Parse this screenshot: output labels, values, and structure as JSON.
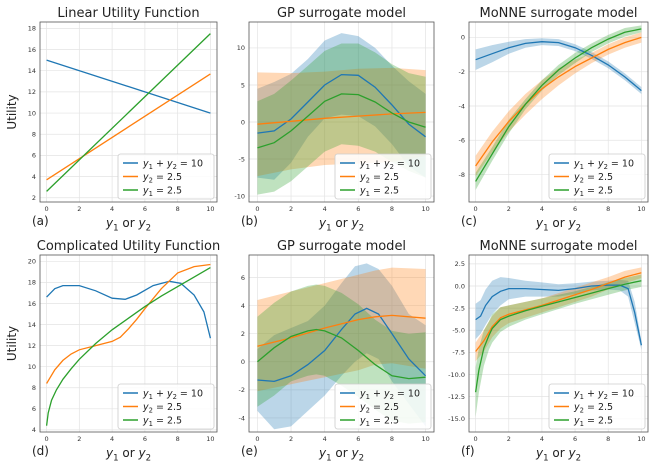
{
  "chart_data": [
    {
      "id": "a",
      "type": "line",
      "title": "Linear Utility Function",
      "panel_label": "(a)",
      "xlabel": "y1 or y2",
      "ylabel": "Utility",
      "xlim": [
        -0.4,
        10.4
      ],
      "ylim": [
        1.6,
        18.6
      ],
      "xticks": [
        0,
        2,
        4,
        6,
        8,
        10
      ],
      "yticks": [
        2,
        4,
        6,
        8,
        10,
        12,
        14,
        16,
        18
      ],
      "grid": true,
      "legend_position": "lower-right",
      "series": [
        {
          "name": "y1 + y2 = 10",
          "color": "#1f77b4",
          "x": [
            0,
            10
          ],
          "y": [
            15.0,
            10.0
          ]
        },
        {
          "name": "y2 = 2.5",
          "color": "#ff7f0e",
          "x": [
            0,
            10
          ],
          "y": [
            3.7,
            13.7
          ]
        },
        {
          "name": "y1 = 2.5",
          "color": "#2ca02c",
          "x": [
            0,
            10
          ],
          "y": [
            2.6,
            17.5
          ]
        }
      ]
    },
    {
      "id": "b",
      "type": "line",
      "title": "GP surrogate model",
      "panel_label": "(b)",
      "xlabel": "y1 or y2",
      "ylabel": "",
      "xlim": [
        -0.5,
        10.5
      ],
      "ylim": [
        -10.8,
        13.5
      ],
      "xticks": [
        0,
        2,
        4,
        6,
        8,
        10
      ],
      "yticks": [
        -10,
        -5,
        0,
        5,
        10
      ],
      "grid": true,
      "legend_position": "lower-right",
      "series": [
        {
          "name": "y1 + y2 = 10",
          "color": "#1f77b4",
          "x": [
            0,
            1,
            2,
            3,
            4,
            5,
            6,
            7,
            8,
            9,
            10
          ],
          "y": [
            -1.5,
            -1.2,
            0.4,
            2.7,
            5.0,
            6.4,
            6.3,
            4.7,
            2.3,
            -0.3,
            -2.0
          ],
          "lower": [
            -7.5,
            -7.8,
            -5.5,
            -2.0,
            0.5,
            1.0,
            0.8,
            -0.6,
            -3.0,
            -6.0,
            -7.5
          ],
          "upper": [
            4.5,
            5.4,
            6.5,
            8.5,
            11.0,
            12.0,
            11.6,
            10.0,
            7.6,
            5.5,
            3.8
          ]
        },
        {
          "name": "y2 = 2.5",
          "color": "#ff7f0e",
          "x": [
            0,
            2,
            4,
            6,
            8,
            10
          ],
          "y": [
            -0.3,
            0.1,
            0.5,
            0.8,
            1.1,
            1.3
          ],
          "lower": [
            -7.3,
            -6.4,
            -5.8,
            -5.6,
            -5.4,
            -4.6
          ],
          "upper": [
            6.7,
            6.6,
            6.8,
            7.2,
            7.3,
            7.0
          ]
        },
        {
          "name": "y1 = 2.5",
          "color": "#2ca02c",
          "x": [
            0,
            1,
            2,
            3,
            4,
            5,
            6,
            7,
            8,
            9,
            10
          ],
          "y": [
            -3.5,
            -2.8,
            -1.2,
            0.8,
            2.8,
            3.8,
            3.7,
            2.7,
            1.2,
            0.0,
            -0.7
          ],
          "lower": [
            -9.8,
            -9.4,
            -8.0,
            -6.0,
            -4.0,
            -3.0,
            -3.2,
            -4.0,
            -5.4,
            -6.6,
            -7.5
          ],
          "upper": [
            2.8,
            3.8,
            5.6,
            7.6,
            9.6,
            10.6,
            10.6,
            9.4,
            7.8,
            6.6,
            6.1
          ]
        }
      ]
    },
    {
      "id": "c",
      "type": "line",
      "title": "MoNNE surrogate model",
      "panel_label": "(c)",
      "xlabel": "y1 or y2",
      "ylabel": "",
      "xlim": [
        -0.4,
        10.4
      ],
      "ylim": [
        -9.6,
        0.9
      ],
      "xticks": [
        0,
        2,
        4,
        6,
        8,
        10
      ],
      "yticks": [
        -8,
        -6,
        -4,
        -2,
        0
      ],
      "grid": true,
      "legend_position": "lower-right",
      "series": [
        {
          "name": "y1 + y2 = 10",
          "color": "#1f77b4",
          "x": [
            0,
            1,
            2,
            3,
            4,
            5,
            6,
            7,
            8,
            9,
            10
          ],
          "y": [
            -1.3,
            -0.95,
            -0.6,
            -0.35,
            -0.25,
            -0.3,
            -0.6,
            -1.05,
            -1.6,
            -2.3,
            -3.1
          ],
          "lower": [
            -1.9,
            -1.45,
            -0.95,
            -0.6,
            -0.45,
            -0.5,
            -0.8,
            -1.25,
            -1.8,
            -2.5,
            -3.3
          ],
          "upper": [
            -0.7,
            -0.45,
            -0.25,
            -0.1,
            -0.05,
            -0.1,
            -0.4,
            -0.85,
            -1.4,
            -2.1,
            -2.9
          ]
        },
        {
          "name": "y2 = 2.5",
          "color": "#ff7f0e",
          "x": [
            0,
            1,
            2,
            3,
            4,
            5,
            6,
            7,
            8,
            9,
            10
          ],
          "y": [
            -7.5,
            -6.1,
            -4.9,
            -3.9,
            -3.0,
            -2.3,
            -1.7,
            -1.2,
            -0.7,
            -0.3,
            0.0
          ],
          "lower": [
            -8.1,
            -6.7,
            -5.5,
            -4.5,
            -3.6,
            -2.8,
            -2.1,
            -1.5,
            -1.0,
            -0.6,
            -0.3
          ],
          "upper": [
            -6.9,
            -5.5,
            -4.3,
            -3.3,
            -2.5,
            -1.8,
            -1.3,
            -0.9,
            -0.4,
            0.0,
            0.3
          ]
        },
        {
          "name": "y1 = 2.5",
          "color": "#2ca02c",
          "x": [
            0,
            1,
            2,
            3,
            4,
            5,
            6,
            7,
            8,
            9,
            10
          ],
          "y": [
            -8.4,
            -6.8,
            -5.2,
            -3.9,
            -2.8,
            -1.9,
            -1.2,
            -0.6,
            -0.1,
            0.3,
            0.5
          ],
          "lower": [
            -8.9,
            -7.2,
            -5.6,
            -4.2,
            -3.1,
            -2.2,
            -1.5,
            -0.85,
            -0.35,
            0.05,
            0.3
          ],
          "upper": [
            -7.9,
            -6.4,
            -4.8,
            -3.6,
            -2.5,
            -1.6,
            -0.9,
            -0.35,
            0.15,
            0.55,
            0.7
          ]
        }
      ]
    },
    {
      "id": "d",
      "type": "line",
      "title": "Complicated Utility Function",
      "panel_label": "(d)",
      "xlabel": "y1 or y2",
      "ylabel": "Utility",
      "xlim": [
        -0.4,
        10.4
      ],
      "ylim": [
        3.8,
        20.6
      ],
      "xticks": [
        0,
        2,
        4,
        6,
        8,
        10
      ],
      "yticks": [
        4,
        6,
        8,
        10,
        12,
        14,
        16,
        18,
        20
      ],
      "grid": true,
      "legend_position": "lower-right",
      "series": [
        {
          "name": "y1 + y2 = 10",
          "color": "#1f77b4",
          "x": [
            0,
            0.5,
            1,
            2,
            3,
            4,
            4.8,
            5.5,
            6.5,
            7.5,
            8.2,
            9,
            9.6,
            10
          ],
          "y": [
            16.6,
            17.4,
            17.7,
            17.7,
            17.2,
            16.5,
            16.4,
            16.8,
            17.7,
            18.1,
            17.9,
            16.8,
            15.2,
            12.7
          ]
        },
        {
          "name": "y2 = 2.5",
          "color": "#ff7f0e",
          "x": [
            0,
            0.5,
            1,
            1.5,
            2,
            3,
            4,
            4.5,
            5,
            5.5,
            6,
            7,
            8,
            9,
            10
          ],
          "y": [
            8.4,
            9.7,
            10.6,
            11.2,
            11.6,
            12.0,
            12.4,
            12.8,
            13.6,
            14.5,
            15.5,
            17.4,
            18.9,
            19.5,
            19.7
          ]
        },
        {
          "name": "y1 = 2.5",
          "color": "#2ca02c",
          "x": [
            0,
            0.1,
            0.3,
            0.6,
            1,
            1.5,
            2,
            3,
            4,
            5,
            6,
            7,
            8,
            9,
            10
          ],
          "y": [
            4.4,
            5.6,
            6.8,
            7.8,
            8.8,
            9.8,
            10.7,
            12.2,
            13.5,
            14.6,
            15.7,
            16.7,
            17.6,
            18.5,
            19.4
          ]
        }
      ]
    },
    {
      "id": "e",
      "type": "line",
      "title": "GP surrogate model",
      "panel_label": "(e)",
      "xlabel": "y1 or y2",
      "ylabel": "",
      "xlim": [
        -0.5,
        10.5
      ],
      "ylim": [
        -5.0,
        7.6
      ],
      "xticks": [
        0,
        2,
        4,
        6,
        8,
        10
      ],
      "yticks": [
        -4,
        -2,
        0,
        2,
        4,
        6
      ],
      "grid": true,
      "legend_position": "lower-right",
      "series": [
        {
          "name": "y1 + y2 = 10",
          "color": "#1f77b4",
          "x": [
            0,
            1,
            2,
            3,
            4,
            5,
            5.8,
            6.5,
            7.2,
            8,
            9,
            10
          ],
          "y": [
            -1.3,
            -1.4,
            -1.0,
            -0.2,
            0.8,
            2.3,
            3.4,
            3.8,
            3.4,
            2.0,
            0.2,
            -1.0
          ],
          "lower": [
            -3.5,
            -4.8,
            -4.6,
            -3.5,
            -2.4,
            -1.0,
            0.0,
            0.6,
            0.2,
            -1.4,
            -3.0,
            -4.6
          ],
          "upper": [
            0.9,
            1.9,
            2.4,
            2.9,
            4.0,
            5.6,
            6.8,
            7.0,
            6.6,
            5.4,
            3.4,
            2.6
          ]
        },
        {
          "name": "y2 = 2.5",
          "color": "#ff7f0e",
          "x": [
            0,
            2,
            4,
            6,
            7,
            8,
            10
          ],
          "y": [
            1.1,
            1.7,
            2.4,
            3.0,
            3.2,
            3.3,
            3.1
          ],
          "lower": [
            -2.1,
            -1.6,
            -1.1,
            -0.6,
            -0.2,
            -0.1,
            -0.5
          ],
          "upper": [
            4.4,
            5.0,
            5.6,
            6.2,
            6.5,
            6.7,
            6.6
          ]
        },
        {
          "name": "y1 = 2.5",
          "color": "#2ca02c",
          "x": [
            0,
            1,
            2,
            3,
            3.5,
            4,
            5,
            6,
            7,
            8,
            9,
            10
          ],
          "y": [
            0.0,
            1.0,
            1.8,
            2.2,
            2.3,
            2.2,
            1.7,
            0.8,
            -0.2,
            -1.0,
            -1.2,
            -1.1
          ],
          "lower": [
            -3.2,
            -2.4,
            -1.4,
            -1.0,
            -0.9,
            -1.0,
            -1.7,
            -2.5,
            -3.4,
            -4.2,
            -4.4,
            -4.3
          ],
          "upper": [
            3.2,
            4.2,
            5.0,
            5.4,
            5.5,
            5.4,
            4.9,
            4.1,
            3.0,
            2.2,
            2.0,
            2.1
          ]
        }
      ]
    },
    {
      "id": "f",
      "type": "line",
      "title": "MoNNE surrogate model",
      "panel_label": "(f)",
      "xlabel": "y1 or y2",
      "ylabel": "",
      "xlim": [
        -0.4,
        10.4
      ],
      "ylim": [
        -16.5,
        3.5
      ],
      "xticks": [
        0,
        2,
        4,
        6,
        8,
        10
      ],
      "yticks": [
        -15.0,
        -12.5,
        -10.0,
        -7.5,
        -5.0,
        -2.5,
        0.0,
        2.5
      ],
      "ytick_labels": [
        "-15.0",
        "-12.5",
        "-10.0",
        "-7.5",
        "-5.0",
        "-2.5",
        "0.0",
        "2.5"
      ],
      "grid": true,
      "legend_position": "lower-right",
      "series": [
        {
          "name": "y1 + y2 = 10",
          "color": "#1f77b4",
          "x": [
            0,
            0.3,
            0.6,
            1,
            1.5,
            2,
            3,
            4,
            5,
            6,
            7,
            8,
            8.7,
            9.2,
            9.6,
            10
          ],
          "y": [
            -3.8,
            -3.4,
            -2.2,
            -1.2,
            -0.6,
            -0.3,
            -0.3,
            -0.4,
            -0.5,
            -0.3,
            0.0,
            0.1,
            0.1,
            -0.3,
            -3.0,
            -6.7
          ],
          "lower": [
            -6.0,
            -5.4,
            -4.4,
            -3.2,
            -2.2,
            -1.5,
            -1.2,
            -1.2,
            -1.2,
            -0.9,
            -0.5,
            -0.4,
            -0.5,
            -1.2,
            -4.2,
            -7.2
          ],
          "upper": [
            -2.0,
            -1.6,
            -0.4,
            0.6,
            1.0,
            0.9,
            0.6,
            0.4,
            0.2,
            0.3,
            0.5,
            0.6,
            0.7,
            0.6,
            -1.8,
            -6.2
          ]
        },
        {
          "name": "y2 = 2.5",
          "color": "#ff7f0e",
          "x": [
            0,
            0.5,
            1,
            1.5,
            2,
            3,
            4,
            5,
            6,
            7,
            8,
            9,
            10
          ],
          "y": [
            -7.4,
            -6.2,
            -4.6,
            -3.6,
            -3.2,
            -2.7,
            -2.2,
            -1.6,
            -1.0,
            -0.4,
            0.3,
            1.0,
            1.5
          ],
          "lower": [
            -8.5,
            -7.4,
            -5.8,
            -4.8,
            -4.2,
            -3.6,
            -3.0,
            -2.4,
            -1.8,
            -1.2,
            -0.4,
            0.3,
            0.9
          ],
          "upper": [
            -6.4,
            -5.0,
            -3.4,
            -2.4,
            -2.2,
            -1.8,
            -1.4,
            -0.8,
            -0.2,
            0.4,
            1.0,
            1.7,
            2.1
          ]
        },
        {
          "name": "y1 = 2.5",
          "color": "#2ca02c",
          "x": [
            0,
            0.2,
            0.5,
            0.8,
            1,
            1.5,
            2,
            3,
            4,
            5,
            6,
            7,
            8,
            9,
            10
          ],
          "y": [
            -12.0,
            -9.5,
            -7.0,
            -5.6,
            -4.8,
            -3.8,
            -3.4,
            -2.8,
            -2.3,
            -1.8,
            -1.3,
            -0.8,
            -0.3,
            0.2,
            0.6
          ],
          "lower": [
            -14.8,
            -12.0,
            -9.0,
            -7.2,
            -6.4,
            -5.2,
            -4.6,
            -3.8,
            -3.2,
            -2.6,
            -2.0,
            -1.5,
            -1.0,
            -0.5,
            -0.1
          ],
          "upper": [
            -9.2,
            -7.0,
            -5.0,
            -4.0,
            -3.2,
            -2.4,
            -2.2,
            -1.8,
            -1.4,
            -1.0,
            -0.6,
            -0.1,
            0.4,
            0.9,
            1.3
          ]
        }
      ]
    }
  ]
}
